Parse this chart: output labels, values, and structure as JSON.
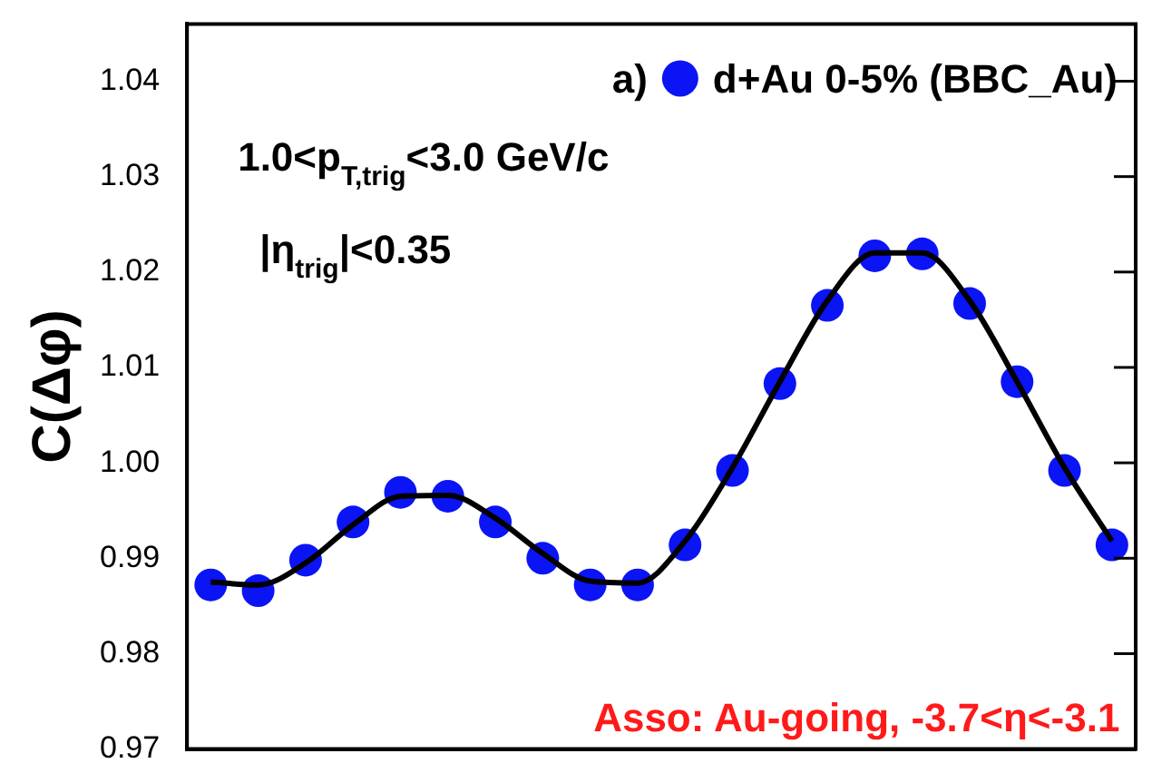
{
  "chart_data": {
    "type": "scatter",
    "ylabel": "C(Δφ)",
    "categories": [
      null,
      null,
      null,
      null,
      null,
      null,
      null,
      null,
      null,
      null,
      null,
      null,
      null,
      null,
      null,
      null,
      null,
      null,
      null,
      null
    ],
    "series": [
      {
        "name": "d+Au 0-5% (BBC_Au)",
        "color": "#0a14f5",
        "values": [
          0.9872,
          0.9866,
          0.9898,
          0.9938,
          0.9969,
          0.9965,
          0.9938,
          0.99,
          0.9872,
          0.9872,
          0.9914,
          0.9992,
          1.0083,
          1.0165,
          1.0217,
          1.0219,
          1.0167,
          1.0085,
          0.9992,
          0.9914
        ]
      },
      {
        "type": "line",
        "marker": "none",
        "color": "#000000",
        "values": [
          0.9875,
          0.9872,
          0.9895,
          0.9935,
          0.9965,
          0.9966,
          0.9942,
          0.9905,
          0.9876,
          0.9874,
          0.9918,
          0.9995,
          1.0085,
          1.017,
          1.022,
          1.022,
          1.017,
          1.0085,
          0.9995,
          0.9918
        ]
      }
    ],
    "ylim": [
      0.97,
      1.046
    ],
    "yticks": [
      {
        "value": 0.97,
        "label": "0.97"
      },
      {
        "value": 0.98,
        "label": "0.98"
      },
      {
        "value": 0.99,
        "label": "0.99"
      },
      {
        "value": 1,
        "label": "1.00"
      },
      {
        "value": 1.01,
        "label": "1.01"
      },
      {
        "value": 1.02,
        "label": "1.02"
      },
      {
        "value": 1.03,
        "label": "1.03"
      },
      {
        "value": 1.04,
        "label": "1.04"
      }
    ],
    "tick_labels": "y",
    "grid": false,
    "legend": "top right",
    "marker": "circle",
    "line_style": "solid",
    "annotations": [
      "a)",
      "1.0<p$_{T,trig}$<3.0 GeV/c",
      "|η$_{trig}$|<0.35",
      "Asso: Au-going, -3.7<η<-3.1"
    ]
  }
}
